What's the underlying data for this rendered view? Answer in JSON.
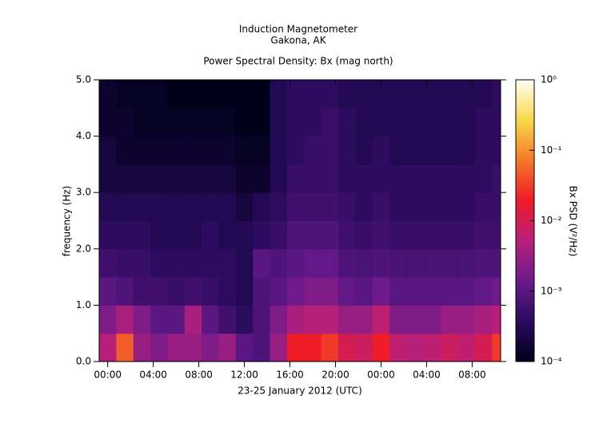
{
  "chart_data": {
    "type": "spectrogram",
    "title": "Induction Magnetometer",
    "subtitle": "Gakona, AK",
    "plot_title": "Power Spectral Density: Bx (mag north)",
    "x_label": "23-25 January 2012 (UTC)",
    "y_label": "frequency (Hz)",
    "colorbar_label": "Bx PSD (V²/Hz)",
    "xlim": [
      -0.75,
      34.5
    ],
    "xticks": [
      {
        "value": 0,
        "label": "00:00"
      },
      {
        "value": 4,
        "label": "04:00"
      },
      {
        "value": 8,
        "label": "08:00"
      },
      {
        "value": 12,
        "label": "12:00"
      },
      {
        "value": 16,
        "label": "16:00"
      },
      {
        "value": 20,
        "label": "20:00"
      },
      {
        "value": 24,
        "label": "00:00"
      },
      {
        "value": 28,
        "label": "04:00"
      },
      {
        "value": 32,
        "label": "08:00"
      }
    ],
    "ylim": [
      0,
      5
    ],
    "yticks": [
      {
        "value": 0,
        "label": "0.0"
      },
      {
        "value": 1,
        "label": "1.0"
      },
      {
        "value": 2,
        "label": "2.0"
      },
      {
        "value": 3,
        "label": "3.0"
      },
      {
        "value": 4,
        "label": "4.0"
      },
      {
        "value": 5,
        "label": "5.0"
      }
    ],
    "clim": [
      0.0001,
      1
    ],
    "clog": true,
    "cticks": [
      {
        "value": 0.0001,
        "label": "10⁻⁴"
      },
      {
        "value": 0.001,
        "label": "10⁻³"
      },
      {
        "value": 0.01,
        "label": "10⁻²"
      },
      {
        "value": 0.1,
        "label": "10⁻¹"
      },
      {
        "value": 1,
        "label": "10⁰"
      }
    ],
    "colormap": [
      "#00001a",
      "#2a0b5e",
      "#6a1a8c",
      "#b8207a",
      "#ee1a28",
      "#f4782a",
      "#f8d848",
      "#fffff4"
    ],
    "time_edges": [
      -0.75,
      0.75,
      2.25,
      3.75,
      5.25,
      6.75,
      8.25,
      9.75,
      11.25,
      12.75,
      14.25,
      15.75,
      17.25,
      18.75,
      20.25,
      21.75,
      23.25,
      24.75,
      26.25,
      27.75,
      29.25,
      30.75,
      32.25,
      33.75,
      34.5
    ],
    "freq_edges": [
      0,
      0.5,
      1,
      1.5,
      2,
      2.5,
      3,
      3.5,
      4,
      4.5,
      5
    ],
    "psd": [
      [
        0.005,
        0.002,
        0.001,
        0.0006,
        0.0004,
        0.0003,
        0.0002,
        0.0002,
        0.00015,
        0.00015
      ],
      [
        0.05,
        0.004,
        0.0008,
        0.0005,
        0.0004,
        0.0003,
        0.0002,
        0.00015,
        0.00015,
        0.00012
      ],
      [
        0.003,
        0.002,
        0.0006,
        0.0005,
        0.0004,
        0.0003,
        0.0002,
        0.00015,
        0.00012,
        0.00012
      ],
      [
        0.002,
        0.001,
        0.0006,
        0.0004,
        0.0003,
        0.0003,
        0.0002,
        0.00015,
        0.00012,
        0.00012
      ],
      [
        0.003,
        0.001,
        0.0005,
        0.0004,
        0.0003,
        0.0003,
        0.0002,
        0.00015,
        0.00012,
        0.0001
      ],
      [
        0.003,
        0.004,
        0.0006,
        0.0004,
        0.0003,
        0.0003,
        0.0002,
        0.00015,
        0.00012,
        0.0001
      ],
      [
        0.002,
        0.001,
        0.0005,
        0.0004,
        0.0004,
        0.0003,
        0.0002,
        0.00015,
        0.00012,
        0.0001
      ],
      [
        0.003,
        0.0006,
        0.0004,
        0.0004,
        0.0003,
        0.0003,
        0.0002,
        0.00015,
        0.00012,
        0.0001
      ],
      [
        0.001,
        0.0004,
        0.0003,
        0.0003,
        0.0003,
        0.0002,
        0.00015,
        0.00012,
        0.0001,
        0.0001
      ],
      [
        0.0008,
        0.0008,
        0.0008,
        0.001,
        0.0004,
        0.0003,
        0.00015,
        0.00012,
        0.0001,
        0.0001
      ],
      [
        0.003,
        0.002,
        0.001,
        0.0008,
        0.0005,
        0.0004,
        0.0003,
        0.0003,
        0.0003,
        0.0003
      ],
      [
        0.02,
        0.004,
        0.0015,
        0.001,
        0.0008,
        0.0006,
        0.0005,
        0.0004,
        0.0004,
        0.0004
      ],
      [
        0.02,
        0.005,
        0.002,
        0.0012,
        0.0008,
        0.0006,
        0.0005,
        0.0005,
        0.0004,
        0.0004
      ],
      [
        0.03,
        0.005,
        0.002,
        0.0012,
        0.0008,
        0.0006,
        0.0005,
        0.0005,
        0.0005,
        0.0004
      ],
      [
        0.01,
        0.003,
        0.0012,
        0.0008,
        0.0006,
        0.0005,
        0.0004,
        0.0004,
        0.0004,
        0.0003
      ],
      [
        0.008,
        0.003,
        0.001,
        0.0007,
        0.0005,
        0.0004,
        0.0004,
        0.0003,
        0.0003,
        0.0003
      ],
      [
        0.02,
        0.006,
        0.0015,
        0.0008,
        0.0006,
        0.0005,
        0.0004,
        0.0004,
        0.0003,
        0.0003
      ],
      [
        0.006,
        0.002,
        0.001,
        0.0007,
        0.0005,
        0.0004,
        0.0004,
        0.0003,
        0.0003,
        0.0003
      ],
      [
        0.005,
        0.002,
        0.001,
        0.0007,
        0.0005,
        0.0004,
        0.0004,
        0.0003,
        0.0003,
        0.0003
      ],
      [
        0.006,
        0.002,
        0.001,
        0.0007,
        0.0005,
        0.0004,
        0.0004,
        0.0003,
        0.0003,
        0.0003
      ],
      [
        0.008,
        0.003,
        0.001,
        0.0007,
        0.0005,
        0.0004,
        0.0004,
        0.0003,
        0.0003,
        0.0003
      ],
      [
        0.006,
        0.003,
        0.001,
        0.0007,
        0.0005,
        0.0004,
        0.0004,
        0.0003,
        0.0003,
        0.0003
      ],
      [
        0.01,
        0.004,
        0.0012,
        0.0008,
        0.0006,
        0.0005,
        0.0004,
        0.0004,
        0.0004,
        0.0003
      ],
      [
        0.03,
        0.005,
        0.0015,
        0.0008,
        0.0006,
        0.0005,
        0.0005,
        0.0004,
        0.0004,
        0.0004
      ]
    ]
  }
}
